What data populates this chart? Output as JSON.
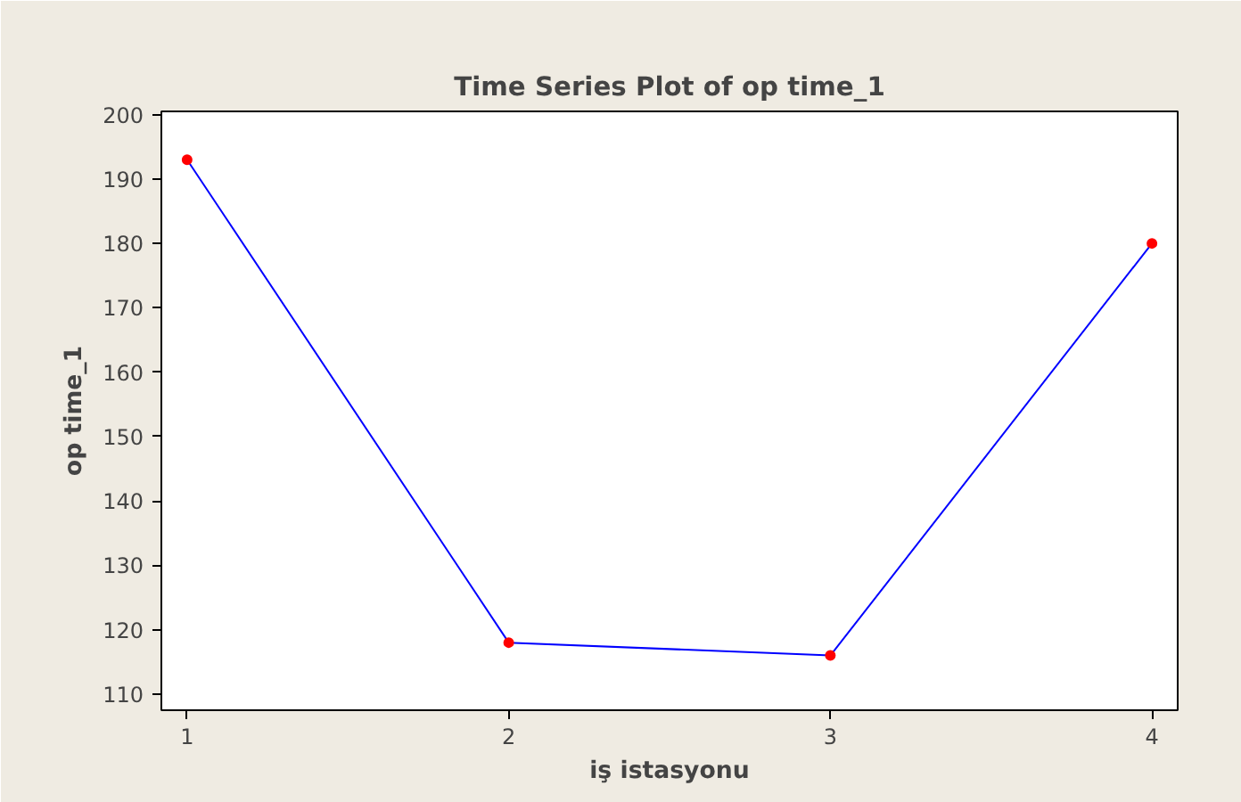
{
  "chart_data": {
    "type": "line",
    "title": "Time Series Plot of op time_1",
    "xlabel": "iş istasyonu",
    "ylabel": "op time_1",
    "x": [
      1,
      2,
      3,
      4
    ],
    "series": [
      {
        "color": "#0000ff",
        "values": [
          193,
          118,
          116,
          180
        ]
      }
    ],
    "xlim": [
      0.92,
      4.08
    ],
    "xticks": [
      1,
      2,
      3,
      4
    ],
    "ylim": [
      107.5,
      200.5
    ],
    "yticks": [
      110,
      120,
      130,
      140,
      150,
      160,
      170,
      180,
      190,
      200
    ],
    "marker": "circle",
    "line_style": "solid"
  }
}
